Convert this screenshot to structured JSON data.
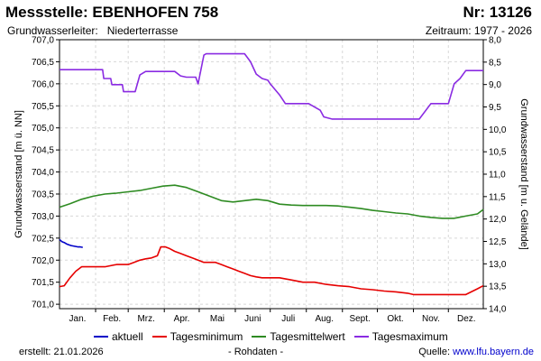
{
  "header": {
    "title": "Messstelle: EBENHOFEN 758",
    "nr": "Nr: 13126",
    "aquifer_label": "Grundwasserleiter:",
    "aquifer_value": "Niederterrasse",
    "period": "Zeitraum: 1977 - 2026"
  },
  "footer": {
    "created": "erstellt:  21.01.2026",
    "raw": "- Rohdaten -",
    "source_label": "Quelle:",
    "source_url": "www.lfu.bayern.de"
  },
  "chart_data": {
    "type": "line",
    "title": "",
    "xlabel": "",
    "ylabel": "Grundwasserstand [m ü. NN]",
    "ylabel_right": "Grundwasserstand [m u. Gelände]",
    "ylim": [
      700.9,
      707.0
    ],
    "ylim_right": [
      8.0,
      14.0
    ],
    "grid": true,
    "legend": "bottom",
    "months": [
      "Jan.",
      "Feb.",
      "Mrz.",
      "Apr.",
      "Mai",
      "Juni",
      "Juli",
      "Aug.",
      "Sept.",
      "Okt.",
      "Nov.",
      "Dez."
    ],
    "yticks_left": [
      "707,0",
      "706,5",
      "706,0",
      "705,5",
      "705,0",
      "704,5",
      "704,0",
      "703,5",
      "703,0",
      "702,5",
      "702,0",
      "701,5",
      "701,0"
    ],
    "yticks_right": [
      "8,0",
      "8,5",
      "9,0",
      "9,5",
      "10,0",
      "10,5",
      "11,0",
      "11,5",
      "12,0",
      "12,5",
      "13,0",
      "13,5",
      "14,0"
    ],
    "series": [
      {
        "name": "aktuell",
        "color": "#0000c8",
        "x": [
          1,
          3,
          5,
          7,
          9,
          11,
          13,
          15,
          17,
          19,
          21
        ],
        "y": [
          702.47,
          702.42,
          702.4,
          702.37,
          702.35,
          702.33,
          702.32,
          702.31,
          702.3,
          702.3,
          702.29
        ]
      },
      {
        "name": "Tagesminimum",
        "color": "#e60000",
        "x": [
          1,
          5,
          10,
          15,
          20,
          30,
          40,
          50,
          55,
          60,
          65,
          70,
          75,
          80,
          85,
          88,
          92,
          95,
          100,
          105,
          110,
          115,
          120,
          125,
          130,
          135,
          140,
          145,
          150,
          155,
          160,
          165,
          170,
          175,
          180,
          185,
          190,
          200,
          210,
          220,
          230,
          240,
          250,
          260,
          270,
          280,
          290,
          300,
          305,
          310,
          315,
          320,
          330,
          340,
          350,
          356,
          360,
          365
        ],
        "y": [
          701.4,
          701.42,
          701.6,
          701.75,
          701.85,
          701.85,
          701.85,
          701.9,
          701.9,
          701.9,
          701.95,
          702.0,
          702.03,
          702.05,
          702.1,
          702.3,
          702.3,
          702.27,
          702.2,
          702.15,
          702.1,
          702.05,
          702.0,
          701.95,
          701.95,
          701.95,
          701.9,
          701.85,
          701.8,
          701.75,
          701.7,
          701.65,
          701.62,
          701.6,
          701.6,
          701.6,
          701.6,
          701.55,
          701.5,
          701.5,
          701.45,
          701.42,
          701.4,
          701.35,
          701.33,
          701.3,
          701.28,
          701.25,
          701.22,
          701.22,
          701.22,
          701.22,
          701.22,
          701.22,
          701.22,
          701.3,
          701.35,
          701.42
        ]
      },
      {
        "name": "Tagesmittelwert",
        "color": "#2e8b22",
        "x": [
          1,
          10,
          20,
          30,
          40,
          50,
          60,
          70,
          80,
          90,
          100,
          110,
          120,
          130,
          140,
          150,
          160,
          170,
          180,
          190,
          200,
          210,
          220,
          230,
          240,
          250,
          260,
          270,
          280,
          290,
          300,
          310,
          320,
          330,
          340,
          350,
          360,
          365
        ],
        "y": [
          703.2,
          703.28,
          703.38,
          703.45,
          703.5,
          703.52,
          703.55,
          703.58,
          703.63,
          703.68,
          703.7,
          703.65,
          703.55,
          703.45,
          703.35,
          703.32,
          703.35,
          703.38,
          703.35,
          703.27,
          703.25,
          703.24,
          703.24,
          703.24,
          703.23,
          703.2,
          703.17,
          703.13,
          703.1,
          703.07,
          703.05,
          703.0,
          702.97,
          702.95,
          702.95,
          703.0,
          703.05,
          703.15
        ]
      },
      {
        "name": "Tagesmaximum",
        "color": "#8a2be2",
        "x": [
          1,
          38,
          39,
          45,
          46,
          55,
          56,
          65,
          66,
          70,
          75,
          80,
          100,
          105,
          110,
          118,
          120,
          125,
          127,
          130,
          160,
          165,
          170,
          175,
          180,
          182,
          190,
          195,
          200,
          215,
          225,
          228,
          235,
          240,
          245,
          270,
          280,
          290,
          300,
          310,
          320,
          325,
          330,
          335,
          340,
          345,
          350,
          365
        ],
        "y": [
          706.32,
          706.32,
          706.12,
          706.12,
          705.98,
          705.98,
          705.82,
          705.82,
          705.82,
          706.2,
          706.28,
          706.28,
          706.28,
          706.18,
          706.15,
          706.15,
          706.0,
          706.65,
          706.68,
          706.68,
          706.68,
          706.5,
          706.22,
          706.12,
          706.08,
          706.0,
          705.75,
          705.55,
          705.55,
          705.55,
          705.4,
          705.25,
          705.2,
          705.2,
          705.2,
          705.2,
          705.2,
          705.2,
          705.2,
          705.2,
          705.55,
          705.55,
          705.55,
          705.55,
          706.0,
          706.12,
          706.3,
          706.3
        ]
      }
    ]
  }
}
